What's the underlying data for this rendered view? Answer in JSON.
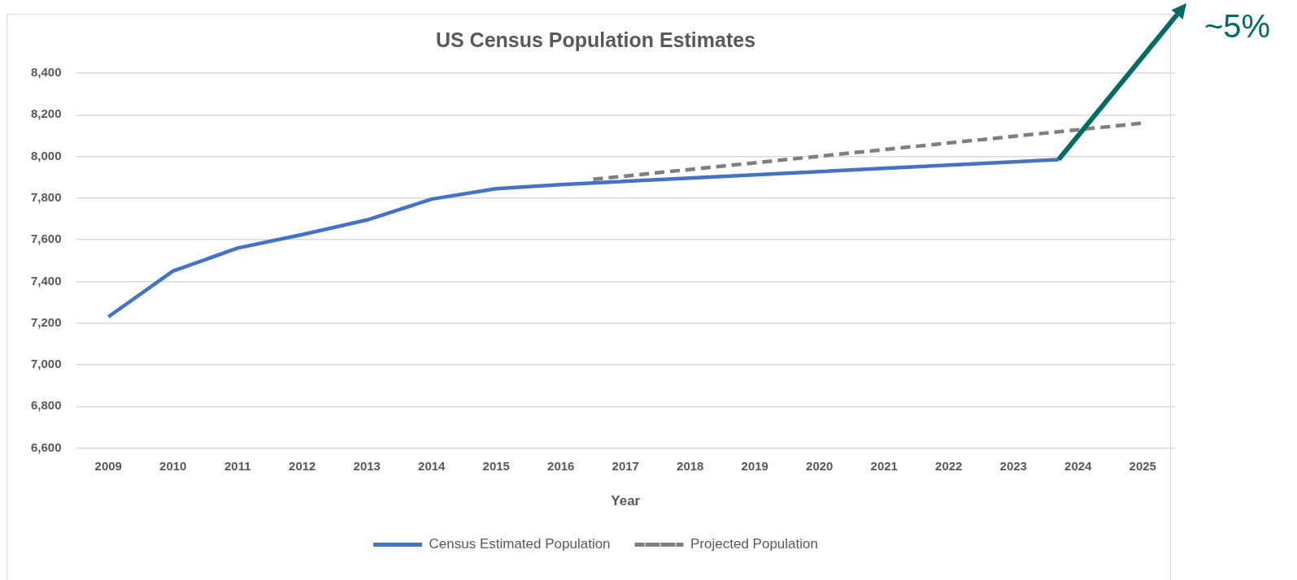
{
  "chart_data": {
    "type": "line",
    "title": "US Census Population Estimates",
    "xlabel": "Year",
    "xlim": [
      2008.5,
      2025.5
    ],
    "xticks": [
      2009,
      2010,
      2011,
      2012,
      2013,
      2014,
      2015,
      2016,
      2017,
      2018,
      2019,
      2020,
      2021,
      2022,
      2023,
      2024,
      2025
    ],
    "ylim": [
      6600,
      8400
    ],
    "yticks": [
      {
        "value": 6600,
        "label": "6,600"
      },
      {
        "value": 6800,
        "label": "6,800"
      },
      {
        "value": 7000,
        "label": "7,000"
      },
      {
        "value": 7200,
        "label": "7,200"
      },
      {
        "value": 7400,
        "label": "7,400"
      },
      {
        "value": 7600,
        "label": "7,600"
      },
      {
        "value": 7800,
        "label": "7,800"
      },
      {
        "value": 8000,
        "label": "8,000"
      },
      {
        "value": 8200,
        "label": "8,200"
      },
      {
        "value": 8400,
        "label": "8,400"
      }
    ],
    "series": [
      {
        "name": "Census Estimated Population",
        "color": "#4472c4",
        "line_style": "solid",
        "x": [
          2009,
          2010,
          2011,
          2012,
          2013,
          2014,
          2015,
          2016,
          2023.7
        ],
        "values": [
          7230,
          7450,
          7560,
          7625,
          7695,
          7795,
          7845,
          7865,
          7985
        ]
      },
      {
        "name": "Projected Population",
        "color": "#7f7f7f",
        "line_style": "dashed",
        "x": [
          2016.5,
          2025
        ],
        "values": [
          7890,
          8160
        ]
      }
    ],
    "annotations": [
      "~5%"
    ],
    "grid": "y",
    "legend": "bottom",
    "marker": "none"
  }
}
